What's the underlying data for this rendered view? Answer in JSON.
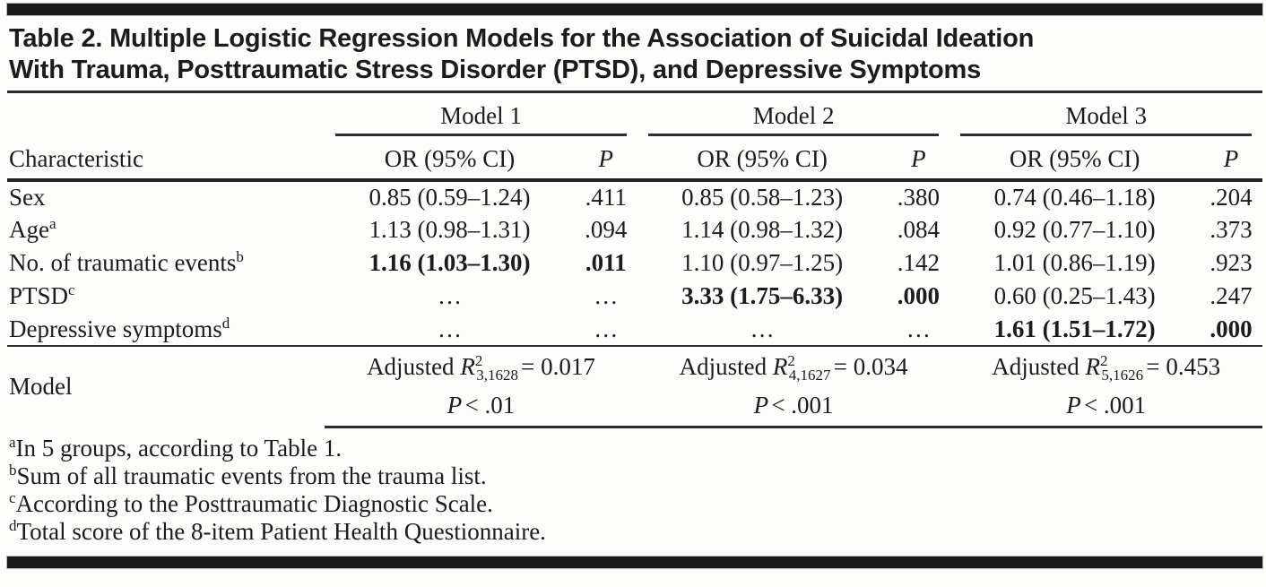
{
  "page": {
    "title": {
      "line1": "Table 2. Multiple Logistic Regression Models for the Association of Suicidal Ideation",
      "line2": "With Trauma, Posttraumatic Stress Disorder (PTSD), and Depressive Symptoms"
    },
    "header": {
      "characteristic": "Characteristic",
      "models": [
        {
          "name": "Model 1",
          "or": "OR (95% CI)",
          "p": "P"
        },
        {
          "name": "Model 2",
          "or": "OR (95% CI)",
          "p": "P"
        },
        {
          "name": "Model 3",
          "or": "OR (95% CI)",
          "p": "P"
        }
      ]
    },
    "rows": [
      {
        "label": "Sex",
        "sup": "",
        "m1_or": "0.85 (0.59–1.24)",
        "m1_p": ".411",
        "m1_bold": false,
        "m2_or": "0.85 (0.58–1.23)",
        "m2_p": ".380",
        "m2_bold": false,
        "m3_or": "0.74 (0.46–1.18)",
        "m3_p": ".204",
        "m3_bold": false
      },
      {
        "label": "Age",
        "sup": "a",
        "m1_or": "1.13 (0.98–1.31)",
        "m1_p": ".094",
        "m1_bold": false,
        "m2_or": "1.14 (0.98–1.32)",
        "m2_p": ".084",
        "m2_bold": false,
        "m3_or": "0.92 (0.77–1.10)",
        "m3_p": ".373",
        "m3_bold": false
      },
      {
        "label": "No. of traumatic events",
        "sup": "b",
        "m1_or": "1.16 (1.03–1.30)",
        "m1_p": ".011",
        "m1_bold": true,
        "m2_or": "1.10 (0.97–1.25)",
        "m2_p": ".142",
        "m2_bold": false,
        "m3_or": "1.01 (0.86–1.19)",
        "m3_p": ".923",
        "m3_bold": false
      },
      {
        "label": "PTSD",
        "sup": "c",
        "m1_or": "…",
        "m1_p": "…",
        "m1_bold": false,
        "m2_or": "3.33 (1.75–6.33)",
        "m2_p": ".000",
        "m2_bold": true,
        "m3_or": "0.60 (0.25–1.43)",
        "m3_p": ".247",
        "m3_bold": false
      },
      {
        "label": "Depressive symptoms",
        "sup": "d",
        "m1_or": "…",
        "m1_p": "…",
        "m1_bold": false,
        "m2_or": "…",
        "m2_p": "…",
        "m2_bold": false,
        "m3_or": "1.61 (1.51–1.72)",
        "m3_p": ".000",
        "m3_bold": true
      }
    ],
    "model_row": {
      "label": "Model",
      "stats": [
        {
          "word": "Adjusted",
          "symbol": "R",
          "sup": "2",
          "sub": "3,1628",
          "value": "= 0.017",
          "p_symbol": "P",
          "p_value": "< .01"
        },
        {
          "word": "Adjusted",
          "symbol": "R",
          "sup": "2",
          "sub": "4,1627",
          "value": "= 0.034",
          "p_symbol": "P",
          "p_value": "< .001"
        },
        {
          "word": "Adjusted",
          "symbol": "R",
          "sup": "2",
          "sub": "5,1626",
          "value": "= 0.453",
          "p_symbol": "P",
          "p_value": "< .001"
        }
      ]
    },
    "footnotes": [
      {
        "marker": "a",
        "text": "In 5 groups, according to Table 1."
      },
      {
        "marker": "b",
        "text": "Sum of all traumatic events from the trauma list."
      },
      {
        "marker": "c",
        "text": "According to the Posttraumatic Diagnostic Scale."
      },
      {
        "marker": "d",
        "text": "Total score of the 8-item Patient Health Questionnaire."
      }
    ]
  }
}
